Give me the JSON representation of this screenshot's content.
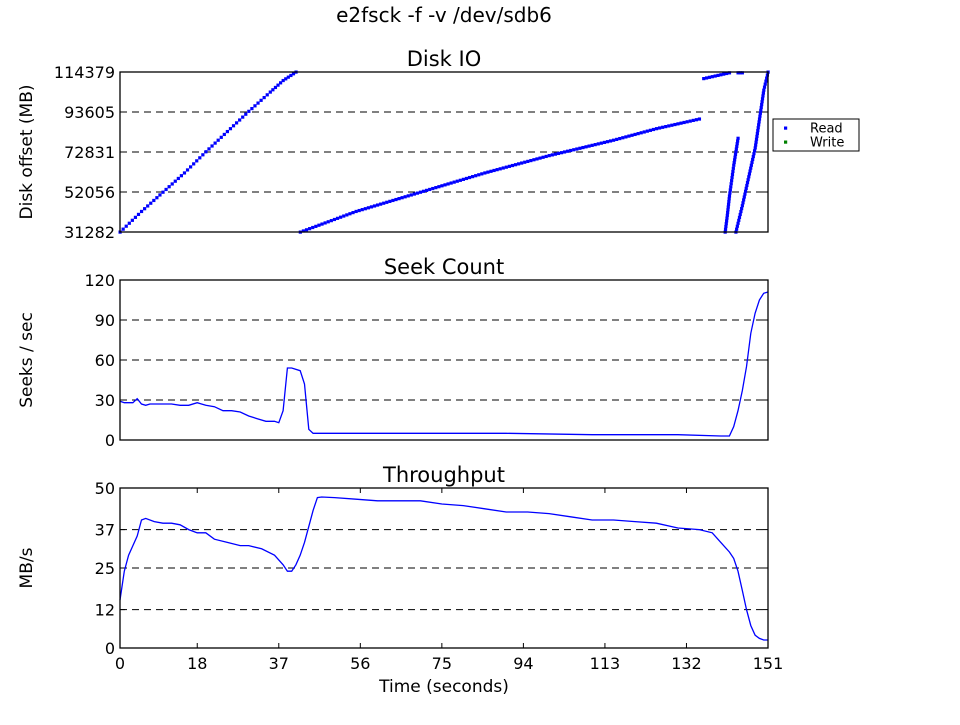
{
  "figure_title": "e2fsck -f -v /dev/sdb6",
  "chart_data": [
    {
      "type": "scatter",
      "title": "Disk IO",
      "ylabel": "Disk offset (MB)",
      "xlabel": "",
      "xlim": [
        0,
        151
      ],
      "ylim": [
        31282,
        114379
      ],
      "yticks": [
        31282,
        52056,
        72831,
        93605,
        114379
      ],
      "grid": "horizontal dashed",
      "legend": {
        "placement": "right-outside",
        "entries": [
          {
            "name": "Read",
            "color": "#0000ff"
          },
          {
            "name": "Write",
            "color": "#008000"
          }
        ]
      },
      "series": [
        {
          "name": "Read",
          "color": "#0000ff",
          "segments": [
            {
              "x": [
                0,
                5,
                10,
                15,
                20,
                25,
                30,
                35,
                38,
                41
              ],
              "y": [
                31282,
                42000,
                52000,
                62000,
                73000,
                83500,
                94000,
                104000,
                110000,
                114379
              ]
            },
            {
              "x": [
                42,
                55,
                70,
                85,
                100,
                115,
                125,
                135
              ],
              "y": [
                31282,
                42000,
                52000,
                62000,
                71000,
                79000,
                85000,
                90000
              ]
            },
            {
              "x": [
                136,
                138,
                140,
                142
              ],
              "y": [
                111000,
                112000,
                113000,
                114000
              ]
            },
            {
              "x": [
                144,
                145
              ],
              "y": [
                114000,
                114000
              ]
            },
            {
              "x": [
                141,
                141.5,
                142,
                142.5,
                143,
                143.5,
                144
              ],
              "y": [
                31282,
                40000,
                50000,
                58000,
                66000,
                73000,
                80000
              ]
            },
            {
              "x": [
                143.5,
                145,
                146.5,
                148,
                149,
                150,
                151
              ],
              "y": [
                31282,
                45000,
                60000,
                75000,
                90000,
                105000,
                114379
              ]
            }
          ]
        },
        {
          "name": "Write",
          "color": "#008000",
          "segments": []
        }
      ]
    },
    {
      "type": "line",
      "title": "Seek Count",
      "ylabel": "Seeks / sec",
      "xlabel": "",
      "xlim": [
        0,
        151
      ],
      "ylim": [
        0,
        120
      ],
      "yticks": [
        0,
        30,
        60,
        90,
        120
      ],
      "grid": "horizontal dashed",
      "series": [
        {
          "name": "",
          "color": "#0000ff",
          "x": [
            0,
            1,
            2,
            3,
            4,
            5,
            6,
            7,
            8,
            10,
            12,
            14,
            16,
            18,
            19,
            20,
            22,
            24,
            26,
            28,
            30,
            32,
            34,
            36,
            37,
            38,
            39,
            40,
            42,
            43,
            44,
            45,
            46,
            48,
            55,
            70,
            90,
            110,
            130,
            140,
            142,
            143,
            144,
            145,
            146,
            147,
            148,
            149,
            150,
            151
          ],
          "y": [
            29,
            28,
            28,
            28,
            31,
            27,
            26,
            27,
            27,
            27,
            27,
            26,
            26,
            28,
            27,
            26,
            25,
            22,
            22,
            21,
            18,
            16,
            14,
            14,
            13,
            22,
            54,
            54,
            52,
            42,
            8,
            5,
            5,
            5,
            5,
            5,
            5,
            4,
            4,
            3,
            3,
            10,
            22,
            37,
            55,
            80,
            95,
            105,
            110,
            111
          ]
        }
      ]
    },
    {
      "type": "line",
      "title": "Throughput",
      "ylabel": "MB/s",
      "xlabel": "Time (seconds)",
      "xlim": [
        0,
        151
      ],
      "ylim": [
        0,
        50
      ],
      "yticks": [
        0,
        12,
        25,
        37,
        50
      ],
      "xticks": [
        0,
        18,
        37,
        56,
        75,
        94,
        113,
        132,
        151
      ],
      "grid": "horizontal dashed",
      "series": [
        {
          "name": "",
          "color": "#0000ff",
          "x": [
            0,
            1,
            2,
            3,
            4,
            5,
            6,
            8,
            10,
            12,
            14,
            16,
            18,
            20,
            22,
            25,
            28,
            30,
            33,
            36,
            38,
            39,
            40,
            41,
            42,
            43,
            44,
            45,
            46,
            47,
            50,
            55,
            60,
            65,
            70,
            75,
            80,
            85,
            90,
            95,
            100,
            105,
            110,
            115,
            120,
            125,
            130,
            135,
            138,
            140,
            142,
            143,
            144,
            145,
            146,
            147,
            148,
            149,
            150,
            151
          ],
          "y": [
            15,
            24,
            29,
            32,
            35,
            40,
            40.5,
            39.5,
            39,
            39,
            38.5,
            37,
            36,
            36,
            34,
            33,
            32,
            32,
            31,
            29,
            26,
            24,
            24,
            26,
            29,
            33,
            38,
            43,
            47,
            47.2,
            47,
            46.5,
            46,
            46,
            46,
            45,
            44.5,
            43.5,
            42.5,
            42.5,
            42,
            41,
            40,
            40,
            39.5,
            39,
            37.5,
            37,
            36,
            33,
            30,
            28,
            24,
            18,
            12,
            7,
            4,
            3,
            2.5,
            2.5
          ]
        }
      ]
    }
  ]
}
